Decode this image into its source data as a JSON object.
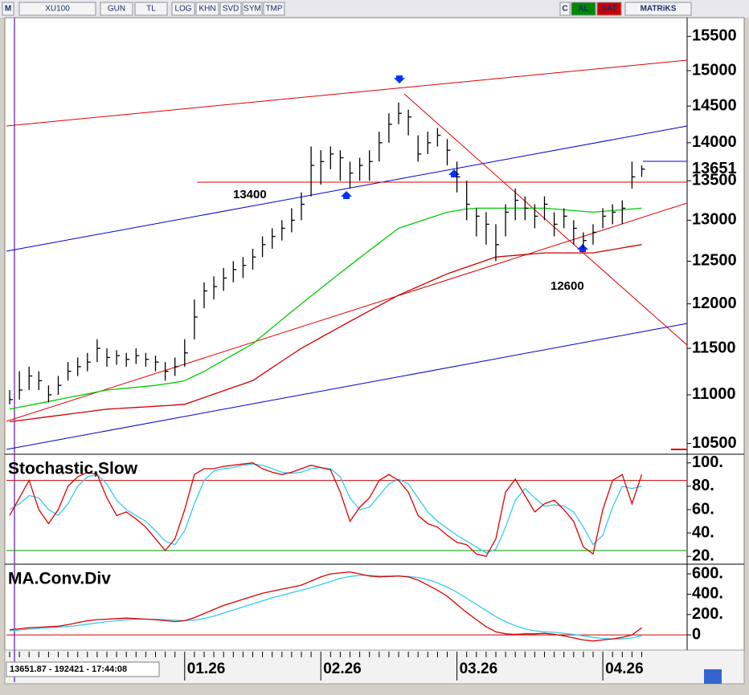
{
  "toolbar": {
    "left": [
      "M",
      "XU100",
      "GUN",
      "TL",
      "LOG",
      "KHN",
      "SVD",
      "SYM",
      "TMP"
    ],
    "right": [
      "C",
      "AL",
      "SAT",
      "MATRiKS"
    ]
  },
  "status": "13651.87 - 192421 - 17:44:08",
  "chart_data": [
    {
      "type": "ohlc",
      "log_scale": true,
      "categories": [
        null,
        null,
        null,
        null,
        null,
        null,
        null,
        null,
        null,
        null,
        null,
        null,
        null,
        null,
        null,
        null,
        null,
        null,
        "01.26",
        null,
        null,
        null,
        null,
        null,
        null,
        null,
        null,
        null,
        null,
        null,
        null,
        null,
        "02.26",
        null,
        null,
        null,
        null,
        null,
        null,
        null,
        null,
        null,
        null,
        null,
        null,
        null,
        "03.26",
        null,
        null,
        null,
        null,
        null,
        null,
        null,
        null,
        null,
        null,
        null,
        null,
        null,
        null,
        "04.26",
        null,
        null,
        null,
        null
      ],
      "high": [
        11050,
        11250,
        11300,
        11250,
        11100,
        11200,
        11350,
        11400,
        11450,
        11600,
        11500,
        11480,
        11450,
        11500,
        11450,
        11420,
        11350,
        11400,
        11600,
        12050,
        12250,
        12320,
        12420,
        12500,
        12550,
        12650,
        12800,
        12900,
        13000,
        13150,
        13350,
        13950,
        13900,
        13950,
        13900,
        13750,
        13800,
        13900,
        14150,
        14400,
        14550,
        14450,
        14100,
        14150,
        14200,
        14050,
        13750,
        13500,
        13150,
        13100,
        12950,
        13200,
        13400,
        13300,
        13200,
        13300,
        13100,
        13150,
        13000,
        12850,
        12950,
        13150,
        13200,
        13250,
        13750,
        13700
      ],
      "low": [
        10900,
        10950,
        11050,
        11050,
        10920,
        11000,
        11150,
        11200,
        11250,
        11350,
        11300,
        11320,
        11300,
        11330,
        11300,
        11250,
        11150,
        11200,
        11300,
        11600,
        11950,
        12050,
        12150,
        12250,
        12300,
        12400,
        12550,
        12650,
        12750,
        12850,
        13000,
        13300,
        13450,
        13650,
        13500,
        13400,
        13500,
        13500,
        13750,
        14000,
        14250,
        14100,
        13750,
        13850,
        13950,
        13700,
        13350,
        13000,
        12800,
        12700,
        12500,
        12800,
        13000,
        13000,
        12900,
        13000,
        12800,
        12900,
        12700,
        12650,
        12700,
        12900,
        12950,
        12950,
        13400,
        13550
      ],
      "close": [
        10950,
        11050,
        11200,
        11150,
        11000,
        11100,
        11250,
        11300,
        11350,
        11500,
        11400,
        11420,
        11380,
        11420,
        11380,
        11350,
        11250,
        11300,
        11450,
        11850,
        12150,
        12200,
        12300,
        12400,
        12450,
        12550,
        12700,
        12800,
        12900,
        13000,
        13200,
        13700,
        13750,
        13850,
        13800,
        13600,
        13700,
        13750,
        14000,
        14250,
        14400,
        14350,
        13850,
        14000,
        14100,
        13900,
        13550,
        13200,
        13050,
        12950,
        12700,
        13100,
        13250,
        13150,
        13050,
        13200,
        12950,
        13050,
        12900,
        12750,
        12850,
        13050,
        13100,
        13150,
        13550,
        13651
      ],
      "series": [
        {
          "color": "#00cc00",
          "values": [
            10850,
            10870,
            10890,
            10910,
            10930,
            10950,
            10970,
            10990,
            11010,
            11030,
            11050,
            11060,
            11070,
            11080,
            11090,
            11100,
            11115,
            11130,
            11150,
            11200,
            11250,
            11310,
            11370,
            11430,
            11490,
            11550,
            11640,
            11730,
            11820,
            11910,
            12000,
            12090,
            12180,
            12270,
            12360,
            12450,
            12540,
            12630,
            12720,
            12810,
            12900,
            12940,
            12980,
            13020,
            13060,
            13100,
            13120,
            13140,
            13150,
            13150,
            13150,
            13150,
            13150,
            13150,
            13150,
            13150,
            13140,
            13130,
            13120,
            13110,
            13100,
            13110,
            13120,
            13130,
            13140,
            13150
          ]
        },
        {
          "color": "#cc0000",
          "values": [
            10720,
            10733,
            10746,
            10759,
            10772,
            10785,
            10798,
            10811,
            10824,
            10837,
            10850,
            10856,
            10862,
            10868,
            10874,
            10880,
            10886,
            10893,
            10900,
            10936,
            10971,
            11007,
            11043,
            11079,
            11114,
            11150,
            11220,
            11290,
            11360,
            11430,
            11500,
            11560,
            11620,
            11680,
            11740,
            11800,
            11860,
            11920,
            11980,
            12040,
            12100,
            12150,
            12200,
            12250,
            12300,
            12350,
            12390,
            12430,
            12470,
            12510,
            12550,
            12560,
            12570,
            12580,
            12590,
            12600,
            12600,
            12600,
            12600,
            12600,
            12600,
            12620,
            12640,
            12660,
            12680,
            12700
          ]
        }
      ],
      "ylim": [
        10400,
        15780
      ],
      "yticks": [
        10500,
        11000,
        11500,
        12000,
        12500,
        13000,
        13500,
        14000,
        14500,
        15000,
        15500
      ],
      "last_label": {
        "value": 13651,
        "label": "13651"
      },
      "annotations": [
        "13400",
        "12600"
      ]
    },
    {
      "type": "line",
      "title": "Stochastic,Slow",
      "series": [
        {
          "color": "#dd0000",
          "values": [
            55,
            70,
            85,
            60,
            48,
            60,
            80,
            88,
            92,
            90,
            70,
            55,
            58,
            52,
            45,
            35,
            25,
            35,
            60,
            90,
            95,
            95,
            97,
            98,
            99,
            100,
            95,
            92,
            90,
            92,
            95,
            98,
            96,
            94,
            75,
            50,
            62,
            70,
            85,
            90,
            85,
            75,
            55,
            48,
            45,
            38,
            32,
            30,
            22,
            20,
            35,
            75,
            86,
            72,
            58,
            65,
            68,
            60,
            50,
            28,
            22,
            60,
            85,
            90,
            65,
            90
          ]
        },
        {
          "color": "#33ccee",
          "values": [
            60,
            65,
            72,
            70,
            60,
            55,
            65,
            80,
            88,
            90,
            82,
            68,
            60,
            55,
            50,
            42,
            33,
            30,
            42,
            65,
            85,
            93,
            95,
            96,
            98,
            99,
            98,
            95,
            92,
            91,
            92,
            95,
            96,
            95,
            88,
            70,
            60,
            62,
            72,
            82,
            86,
            82,
            70,
            58,
            50,
            44,
            38,
            33,
            28,
            23,
            26,
            45,
            68,
            78,
            70,
            63,
            64,
            63,
            58,
            45,
            30,
            38,
            62,
            80,
            78,
            80
          ]
        }
      ],
      "ylim": [
        14,
        106
      ],
      "yticks": [
        {
          "value": 20,
          "label": "20."
        },
        {
          "value": 40,
          "label": "40."
        },
        {
          "value": 60,
          "label": "60."
        },
        {
          "value": 80,
          "label": "80."
        },
        {
          "value": 100,
          "label": "100."
        }
      ],
      "reference_lines": [
        {
          "value": 85,
          "color": "#cc0000"
        },
        {
          "value": 25,
          "color": "#009900"
        }
      ]
    },
    {
      "type": "line",
      "title": "MA.Conv.Div",
      "series": [
        {
          "color": "#dd0000",
          "values": [
            50,
            60,
            70,
            75,
            80,
            85,
            100,
            120,
            140,
            150,
            155,
            160,
            165,
            160,
            155,
            150,
            140,
            130,
            140,
            170,
            210,
            250,
            290,
            320,
            350,
            380,
            410,
            430,
            450,
            470,
            490,
            530,
            570,
            600,
            610,
            620,
            600,
            580,
            570,
            575,
            580,
            570,
            540,
            490,
            440,
            380,
            300,
            220,
            150,
            80,
            30,
            10,
            5,
            10,
            10,
            15,
            5,
            -10,
            -30,
            -50,
            -60,
            -50,
            -40,
            -25,
            0,
            70
          ]
        },
        {
          "color": "#33ccee",
          "values": [
            40,
            48,
            56,
            63,
            70,
            76,
            83,
            92,
            105,
            118,
            130,
            140,
            148,
            154,
            155,
            154,
            150,
            145,
            140,
            145,
            160,
            185,
            215,
            245,
            275,
            305,
            335,
            365,
            390,
            415,
            440,
            465,
            495,
            525,
            555,
            575,
            585,
            585,
            580,
            578,
            578,
            575,
            565,
            545,
            510,
            470,
            420,
            360,
            300,
            240,
            180,
            130,
            90,
            60,
            40,
            30,
            25,
            15,
            5,
            -10,
            -25,
            -35,
            -40,
            -40,
            -30,
            -10
          ]
        }
      ],
      "ylim": [
        -110,
        680
      ],
      "yticks": [
        0,
        {
          "value": 200,
          "label": "200."
        },
        {
          "value": 400,
          "label": "400."
        },
        {
          "value": 600,
          "label": "600."
        }
      ],
      "reference_lines": [
        {
          "value": 0,
          "color": "#cc0000"
        }
      ]
    }
  ]
}
